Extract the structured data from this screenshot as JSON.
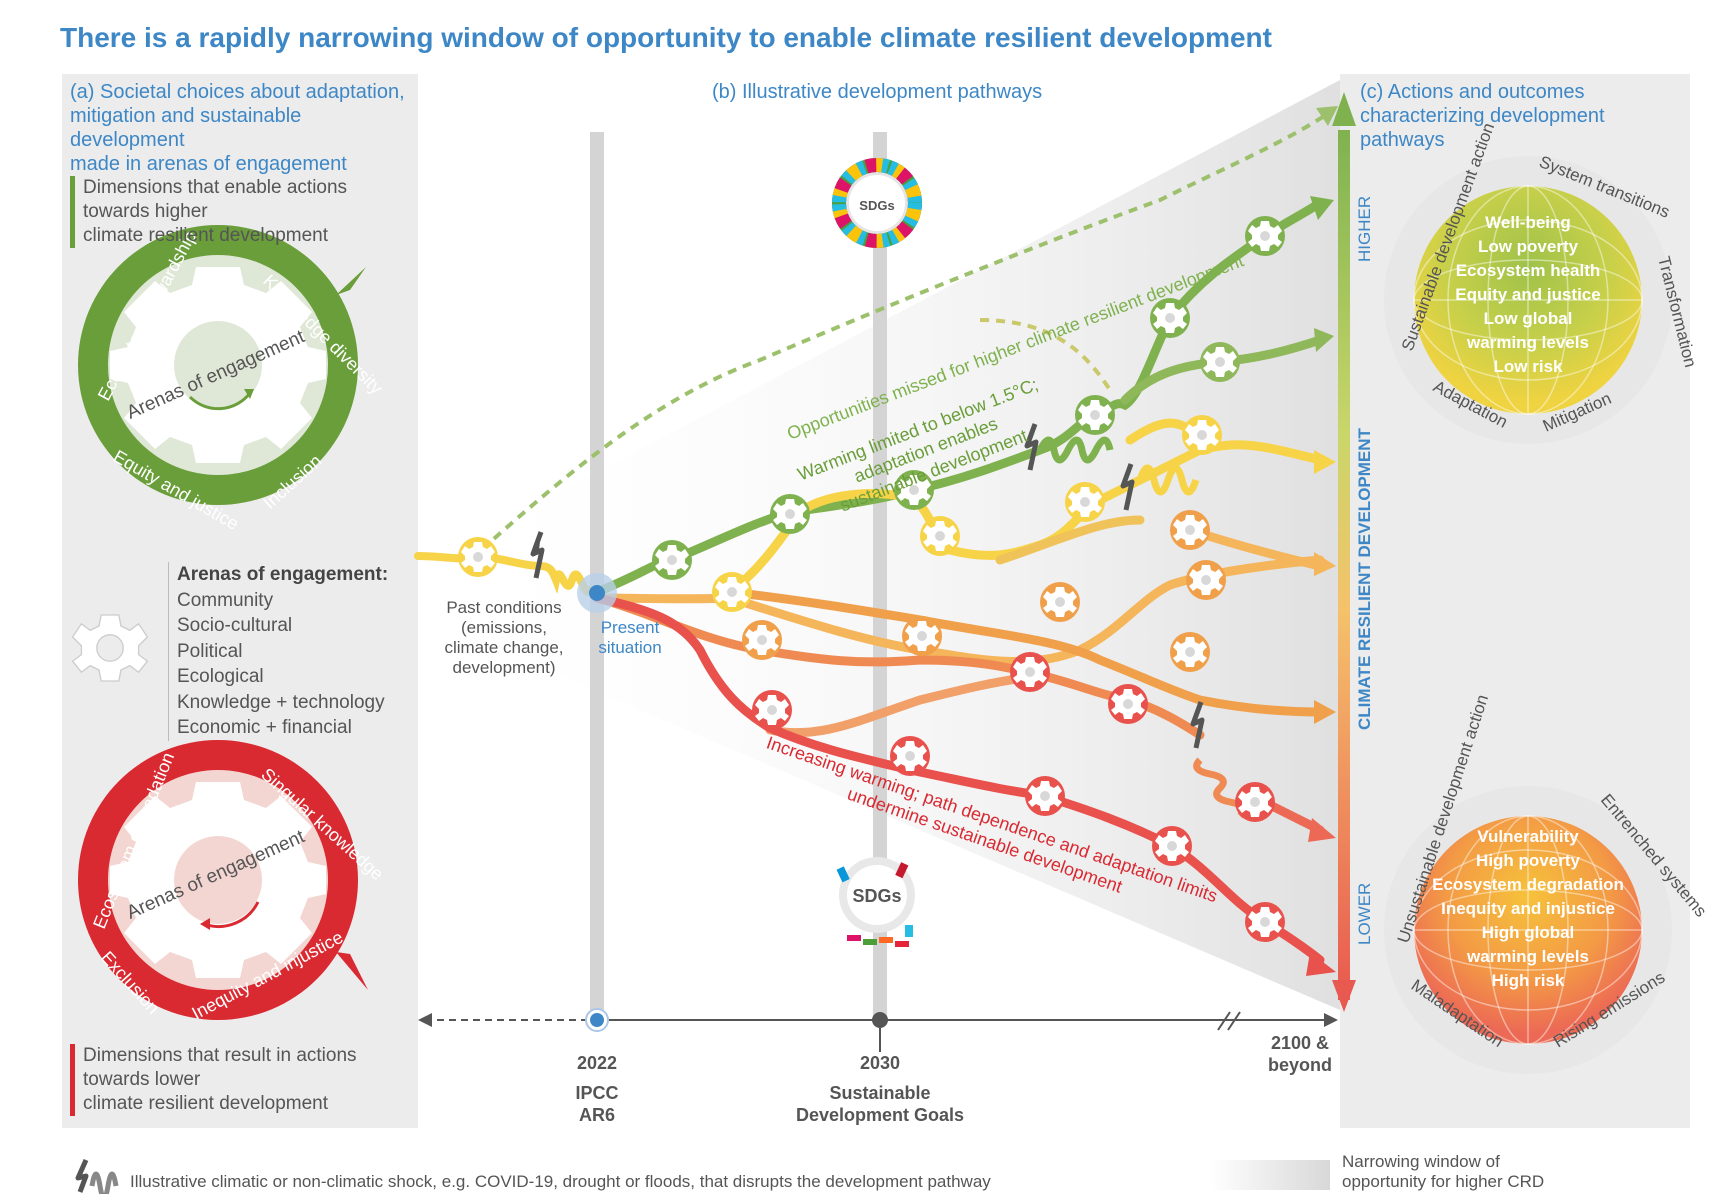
{
  "title": "There is a rapidly narrowing window of opportunity to enable climate resilient development",
  "panel_a": {
    "heading": [
      "(a) Societal choices about adaptation,",
      "mitigation and sustainable development",
      "made in arenas of engagement"
    ],
    "enabling_dims": [
      "Dimensions that enable actions",
      "towards higher",
      "climate resilient development"
    ],
    "green_gear": {
      "center": "Arenas of engagement",
      "ring": [
        "Ecosystem stewardship",
        "Knowledge diversity",
        "Inclusion",
        "Equity and justice"
      ]
    },
    "arenas_title": "Arenas of engagement:",
    "arenas": [
      "Community",
      "Socio-cultural",
      "Political",
      "Ecological",
      "Knowledge + technology",
      "Economic + financial"
    ],
    "red_gear": {
      "center": "Arenas of engagement",
      "ring": [
        "Ecosystem degradation",
        "Singular knowledge",
        "Inequity and injustice",
        "Exclusion"
      ]
    },
    "lowering_dims": [
      "Dimensions that result in actions",
      "towards lower",
      "climate resilient development"
    ]
  },
  "panel_b": {
    "heading": "(b) Illustrative development pathways",
    "past": [
      "Past conditions",
      "(emissions,",
      "climate change,",
      "development)"
    ],
    "present": [
      "Present",
      "situation"
    ],
    "missed": "Opportunities missed for higher climate resilient development",
    "green_path": [
      "Warming limited to below 1.5°C;",
      "adaptation enables",
      "sustainable development"
    ],
    "red_path": [
      "Increasing warming; path dependence and adaptation limits",
      "undermine sustainable development"
    ],
    "sdgs": "SDGs",
    "timeline": {
      "t1": [
        "2022"
      ],
      "t1_sub": [
        "IPCC",
        "AR6"
      ],
      "t2": [
        "2030"
      ],
      "t2_sub": [
        "Sustainable",
        "Development Goals"
      ],
      "t3": [
        "2100 &",
        "beyond"
      ]
    }
  },
  "panel_c": {
    "heading": [
      "(c) Actions and outcomes",
      "characterizing development pathways"
    ],
    "axis": {
      "title": "CLIMATE RESILIENT DEVELOPMENT",
      "higher": "HIGHER",
      "lower": "LOWER"
    },
    "top": {
      "outcomes": [
        "Well-being",
        "Low poverty",
        "Ecosystem health",
        "Equity and justice",
        "Low global",
        "warming levels",
        "Low risk"
      ],
      "ring": [
        "Sustainable development action",
        "System transitions",
        "Transformation",
        "Mitigation",
        "Adaptation"
      ]
    },
    "bottom": {
      "outcomes": [
        "Vulnerability",
        "High poverty",
        "Ecosystem degradation",
        "Inequity and injustice",
        "High global",
        "warming levels",
        "High risk"
      ],
      "ring": [
        "Unsustainable development action",
        "Entrenched systems",
        "Rising emissions",
        "Maladaptation"
      ]
    }
  },
  "legend": {
    "shock": "Illustrative climatic or non-climatic shock, e.g. COVID-19, drought or floods, that disrupts the development pathway",
    "window": [
      "Narrowing window of",
      "opportunity for higher CRD"
    ]
  },
  "colors": {
    "title": "#3d87c6",
    "green": "#6a9e3a",
    "red": "#d92a32",
    "orange": "#f0a04b",
    "yellow": "#f7d348"
  }
}
